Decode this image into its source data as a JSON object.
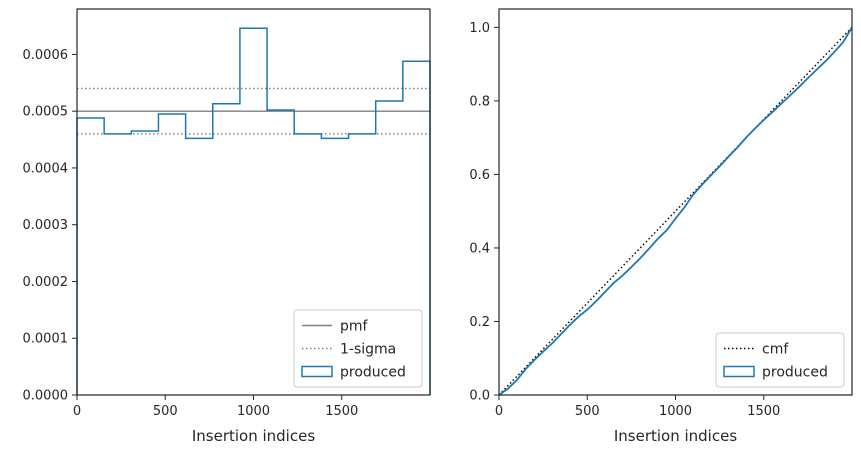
{
  "chart_data": [
    {
      "type": "step",
      "xlabel": "Insertion indices",
      "ylabel": "",
      "xlim": [
        0,
        2000
      ],
      "ylim": [
        0,
        0.00068
      ],
      "xticks": [
        0,
        500,
        1000,
        1500
      ],
      "yticks": [
        0,
        0.0001,
        0.0002,
        0.0003,
        0.0004,
        0.0005,
        0.0006
      ],
      "ytick_labels": [
        "0.0000",
        "0.0001",
        "0.0002",
        "0.0003",
        "0.0004",
        "0.0005",
        "0.0006"
      ],
      "legend_position": "lower right",
      "series": [
        {
          "name": "pmf",
          "kind": "hline",
          "y": 0.0005,
          "color": "#808080"
        },
        {
          "name": "1-sigma",
          "kind": "hlines-dotted",
          "y": [
            0.00054,
            0.00046
          ],
          "color": "#808080"
        },
        {
          "name": "produced",
          "kind": "histogram",
          "color": "#1f77b4",
          "bin_edges": [
            0,
            153.8,
            307.7,
            461.5,
            615.4,
            769.2,
            923.1,
            1076.9,
            1230.8,
            1384.6,
            1538.5,
            1692.3,
            1846.2,
            2000
          ],
          "values": [
            0.000488,
            0.00046,
            0.000465,
            0.000495,
            0.000452,
            0.000513,
            0.000646,
            0.000502,
            0.00046,
            0.000452,
            0.00046,
            0.000518,
            0.000588
          ]
        }
      ]
    },
    {
      "type": "line",
      "xlabel": "Insertion indices",
      "ylabel": "",
      "xlim": [
        0,
        2000
      ],
      "ylim": [
        0,
        1.05
      ],
      "xticks": [
        0,
        500,
        1000,
        1500
      ],
      "yticks": [
        0,
        0.2,
        0.4,
        0.6,
        0.8,
        1.0
      ],
      "ytick_labels": [
        "0.0",
        "0.2",
        "0.4",
        "0.6",
        "0.8",
        "1.0"
      ],
      "legend_position": "lower right",
      "series": [
        {
          "name": "cmf",
          "style": "dotted",
          "color": "#000000",
          "x": [
            0,
            2000
          ],
          "y": [
            0,
            1
          ]
        },
        {
          "name": "produced",
          "style": "solid",
          "color": "#1f77b4",
          "x": [
            0,
            50,
            100,
            150,
            200,
            250,
            300,
            350,
            400,
            450,
            500,
            550,
            600,
            650,
            700,
            750,
            800,
            850,
            900,
            950,
            1000,
            1050,
            1100,
            1150,
            1200,
            1250,
            1300,
            1350,
            1400,
            1450,
            1500,
            1550,
            1600,
            1650,
            1700,
            1750,
            1800,
            1850,
            1900,
            1950,
            2000
          ],
          "y": [
            0,
            0.017,
            0.04,
            0.07,
            0.095,
            0.118,
            0.14,
            0.165,
            0.19,
            0.213,
            0.232,
            0.255,
            0.28,
            0.305,
            0.325,
            0.348,
            0.372,
            0.398,
            0.425,
            0.448,
            0.48,
            0.51,
            0.545,
            0.572,
            0.597,
            0.622,
            0.648,
            0.673,
            0.7,
            0.725,
            0.748,
            0.77,
            0.793,
            0.815,
            0.838,
            0.862,
            0.885,
            0.908,
            0.933,
            0.96,
            1.0
          ]
        }
      ]
    }
  ]
}
